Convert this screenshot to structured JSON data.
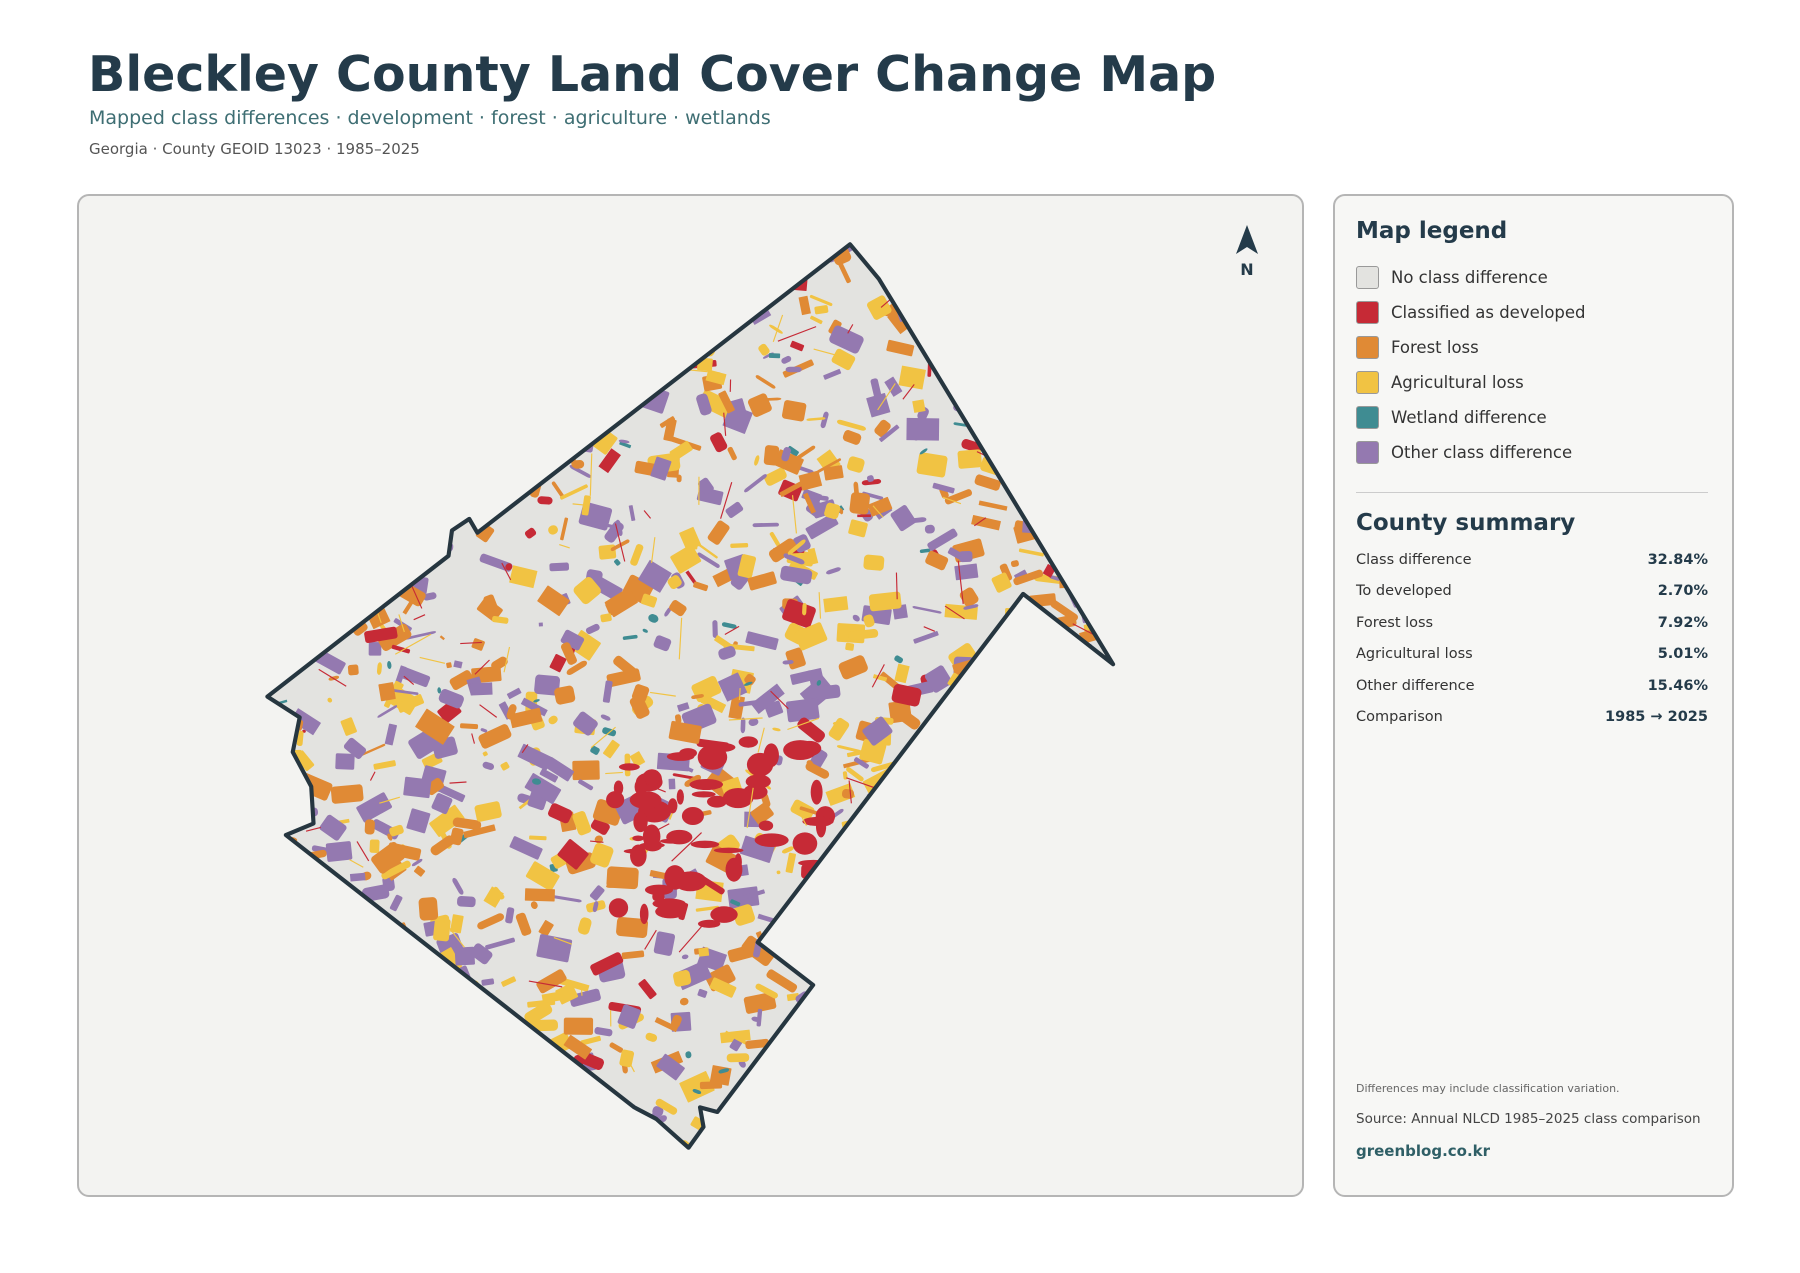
{
  "header": {
    "title": "Bleckley County Land Cover Change Map",
    "subtitle": "Mapped class differences · development · forest · agriculture · wetlands",
    "meta": "Georgia · County GEOID 13023 · 1985–2025"
  },
  "map": {
    "north": "N"
  },
  "legend": {
    "title": "Map legend",
    "items": [
      {
        "label": "No class difference",
        "color": "#e3e3e0"
      },
      {
        "label": "Classified as developed",
        "color": "#c62a36"
      },
      {
        "label": "Forest loss",
        "color": "#e08a35"
      },
      {
        "label": "Agricultural loss",
        "color": "#f1c343"
      },
      {
        "label": "Wetland difference",
        "color": "#3f8c92"
      },
      {
        "label": "Other class difference",
        "color": "#9479b0"
      }
    ]
  },
  "summary": {
    "title": "County summary",
    "rows": [
      [
        "Class difference",
        "32.84%"
      ],
      [
        "To developed",
        "2.70%"
      ],
      [
        "Forest loss",
        "7.92%"
      ],
      [
        "Agricultural loss",
        "5.01%"
      ],
      [
        "Other difference",
        "15.46%"
      ],
      [
        "Comparison",
        "1985 → 2025"
      ]
    ]
  },
  "footer": {
    "note": "Differences may include classification variation.",
    "source": "Source: Annual NLCD 1985–2025 class comparison",
    "link": "greenblog.co.kr"
  }
}
